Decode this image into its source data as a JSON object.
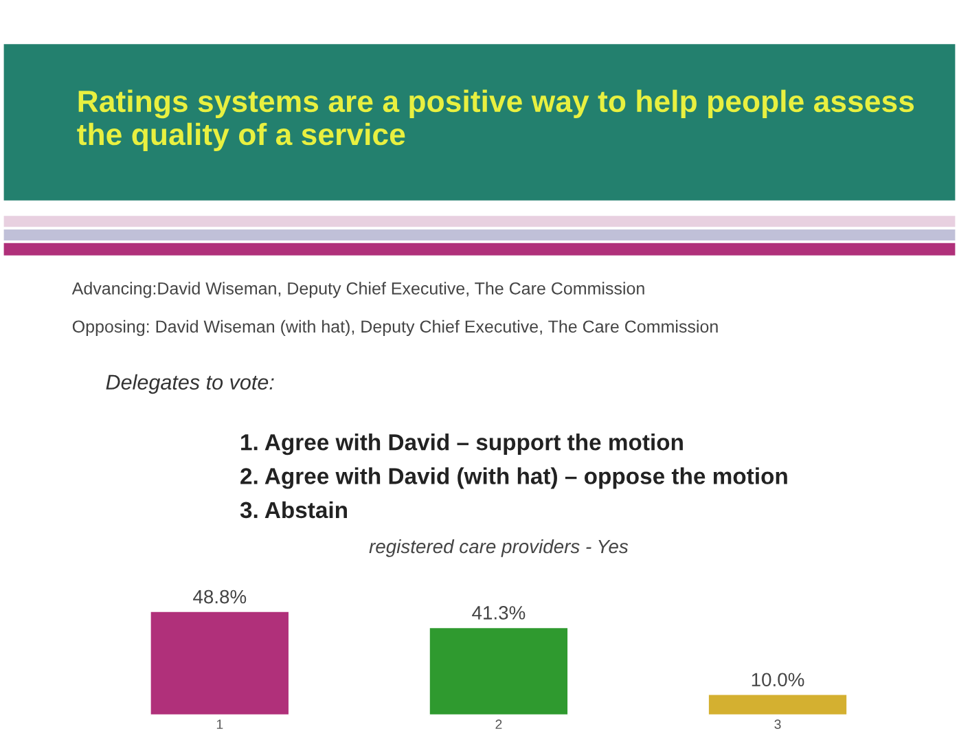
{
  "chart_data": {
    "type": "bar",
    "title": "Ratings systems are a positive way to help people assess the quality of a service",
    "subtitle": "registered care providers - Yes",
    "annotations": [
      "Advancing:David Wiseman, Deputy Chief Executive, The Care Commission",
      "Opposing: David Wiseman (with hat), Deputy Chief Executive, The Care Commission",
      "Delegates to vote:",
      "1. Agree with David – support the motion",
      "2. Agree with David (with hat) – oppose the motion",
      "3. Abstain"
    ],
    "categories": [
      "1",
      "2",
      "3"
    ],
    "values": [
      48.8,
      41.3,
      10.0
    ],
    "colors": [
      "#b0307a",
      "#2f9a2f",
      "#d4b030"
    ],
    "value_labels": [
      "48.8%",
      "41.3%",
      "10.0%"
    ],
    "grid": false,
    "legend": false
  }
}
